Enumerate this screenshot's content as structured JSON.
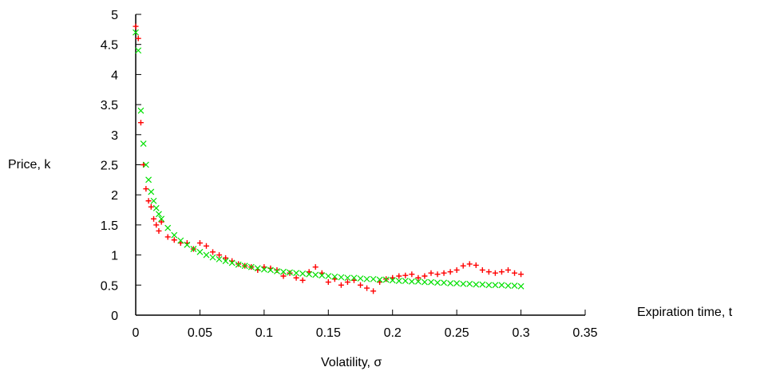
{
  "chart_data": {
    "type": "scatter",
    "ylabel": "Price, k",
    "xlabel": "Expiration time, t",
    "x2label": "Volatility, σ",
    "xlim": [
      0,
      0.35
    ],
    "ylim": [
      0,
      5
    ],
    "x_ticks": [
      "0",
      "0.05",
      "0.1",
      "0.15",
      "0.2",
      "0.25",
      "0.3",
      "0.35"
    ],
    "y_ticks": [
      "0",
      "0.5",
      "1",
      "1.5",
      "2",
      "2.5",
      "3",
      "3.5",
      "4",
      "4.5",
      "5"
    ],
    "grid": false,
    "series": [
      {
        "color": "#ff0000",
        "marker": "plus",
        "x": [
          0.0,
          0.002,
          0.004,
          0.006,
          0.008,
          0.01,
          0.012,
          0.014,
          0.016,
          0.018,
          0.02,
          0.025,
          0.03,
          0.035,
          0.04,
          0.045,
          0.05,
          0.055,
          0.06,
          0.065,
          0.07,
          0.075,
          0.08,
          0.085,
          0.09,
          0.095,
          0.1,
          0.105,
          0.11,
          0.115,
          0.12,
          0.125,
          0.13,
          0.135,
          0.14,
          0.145,
          0.15,
          0.155,
          0.16,
          0.165,
          0.17,
          0.175,
          0.18,
          0.185,
          0.19,
          0.195,
          0.2,
          0.205,
          0.21,
          0.215,
          0.22,
          0.225,
          0.23,
          0.235,
          0.24,
          0.245,
          0.25,
          0.255,
          0.26,
          0.265,
          0.27,
          0.275,
          0.28,
          0.285,
          0.29,
          0.295,
          0.3
        ],
        "y": [
          4.8,
          4.6,
          3.2,
          2.5,
          2.1,
          1.9,
          1.8,
          1.6,
          1.5,
          1.4,
          1.55,
          1.3,
          1.25,
          1.2,
          1.2,
          1.1,
          1.2,
          1.15,
          1.05,
          1.0,
          0.95,
          0.9,
          0.85,
          0.82,
          0.8,
          0.75,
          0.8,
          0.78,
          0.75,
          0.65,
          0.7,
          0.62,
          0.58,
          0.72,
          0.8,
          0.7,
          0.55,
          0.6,
          0.5,
          0.55,
          0.58,
          0.5,
          0.45,
          0.4,
          0.55,
          0.6,
          0.62,
          0.65,
          0.66,
          0.68,
          0.62,
          0.65,
          0.7,
          0.68,
          0.7,
          0.72,
          0.75,
          0.82,
          0.85,
          0.83,
          0.75,
          0.72,
          0.7,
          0.72,
          0.75,
          0.7,
          0.68
        ]
      },
      {
        "color": "#00e000",
        "marker": "x",
        "x": [
          0.0,
          0.002,
          0.004,
          0.006,
          0.008,
          0.01,
          0.012,
          0.014,
          0.016,
          0.018,
          0.02,
          0.025,
          0.03,
          0.035,
          0.04,
          0.045,
          0.05,
          0.055,
          0.06,
          0.065,
          0.07,
          0.075,
          0.08,
          0.085,
          0.09,
          0.095,
          0.1,
          0.105,
          0.11,
          0.115,
          0.12,
          0.125,
          0.13,
          0.135,
          0.14,
          0.145,
          0.15,
          0.155,
          0.16,
          0.165,
          0.17,
          0.175,
          0.18,
          0.185,
          0.19,
          0.195,
          0.2,
          0.205,
          0.21,
          0.215,
          0.22,
          0.225,
          0.23,
          0.235,
          0.24,
          0.245,
          0.25,
          0.255,
          0.26,
          0.265,
          0.27,
          0.275,
          0.28,
          0.285,
          0.29,
          0.295,
          0.3
        ],
        "y": [
          4.7,
          4.4,
          3.4,
          2.85,
          2.5,
          2.25,
          2.05,
          1.9,
          1.78,
          1.68,
          1.6,
          1.45,
          1.33,
          1.24,
          1.17,
          1.1,
          1.05,
          1.0,
          0.96,
          0.93,
          0.9,
          0.87,
          0.84,
          0.82,
          0.8,
          0.78,
          0.76,
          0.75,
          0.73,
          0.72,
          0.71,
          0.7,
          0.69,
          0.68,
          0.67,
          0.66,
          0.65,
          0.64,
          0.63,
          0.62,
          0.62,
          0.61,
          0.6,
          0.6,
          0.59,
          0.59,
          0.58,
          0.57,
          0.57,
          0.56,
          0.56,
          0.55,
          0.55,
          0.54,
          0.54,
          0.53,
          0.53,
          0.52,
          0.52,
          0.51,
          0.51,
          0.5,
          0.5,
          0.5,
          0.49,
          0.49,
          0.48
        ]
      }
    ]
  }
}
